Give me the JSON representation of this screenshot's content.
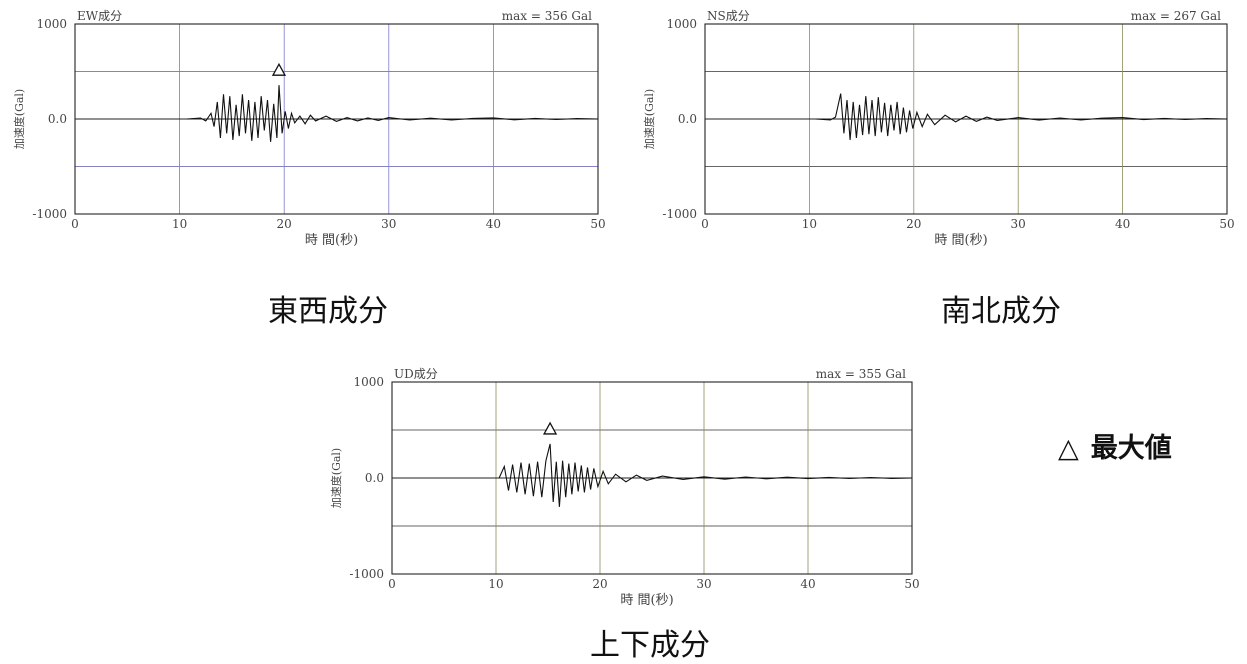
{
  "chart_data": [
    {
      "type": "line",
      "id": "ew",
      "component_label": "EW成分",
      "max_label": "max = 356 Gal",
      "ylabel": "加速度(Gal)",
      "xlabel": "時 間(秒)",
      "ylim": [
        -1000,
        1000
      ],
      "y_ticks": [
        "1000",
        "0.0",
        "-1000"
      ],
      "xlim": [
        0,
        50
      ],
      "x_ticks": [
        "0",
        "10",
        "20",
        "30",
        "40",
        "50"
      ],
      "grid_y": [
        500,
        -500
      ],
      "grid_x": [
        10,
        20,
        30,
        40
      ],
      "peak": {
        "x": 19.5,
        "y": 356
      },
      "series": [
        {
          "x": [
            10.7,
            12.0,
            12.5,
            13.0,
            13.3,
            13.6,
            13.9,
            14.2,
            14.5,
            14.8,
            15.1,
            15.4,
            15.7,
            16.0,
            16.3,
            16.6,
            16.9,
            17.2,
            17.5,
            17.8,
            18.1,
            18.4,
            18.7,
            19.0,
            19.3,
            19.5,
            19.8,
            20.1,
            20.4,
            20.7,
            21.0,
            21.5,
            22.0,
            22.5,
            23.0,
            24.0,
            25.0,
            26.0,
            27.0,
            28.0,
            29.0,
            30.0,
            32.0,
            34.0,
            36.0,
            38.0,
            40.0,
            42.0,
            44.0,
            46.0,
            48.0,
            50.0
          ],
          "y": [
            0,
            10,
            -20,
            60,
            -80,
            180,
            -200,
            260,
            -150,
            240,
            -220,
            150,
            -180,
            260,
            -150,
            200,
            -230,
            180,
            -200,
            240,
            -120,
            200,
            -240,
            160,
            -200,
            356,
            -150,
            80,
            -100,
            60,
            -40,
            30,
            -50,
            40,
            -20,
            30,
            -25,
            15,
            -20,
            10,
            -15,
            15,
            -10,
            8,
            -10,
            6,
            12,
            -8,
            6,
            -5,
            4,
            0
          ]
        }
      ],
      "caption": "東西成分"
    },
    {
      "type": "line",
      "id": "ns",
      "component_label": "NS成分",
      "max_label": "max = 267 Gal",
      "ylabel": "加速度(Gal)",
      "xlabel": "時 間(秒)",
      "ylim": [
        -1000,
        1000
      ],
      "y_ticks": [
        "1000",
        "0.0",
        "-1000"
      ],
      "xlim": [
        0,
        50
      ],
      "x_ticks": [
        "0",
        "10",
        "20",
        "30",
        "40",
        "50"
      ],
      "grid_y": [
        500,
        -500
      ],
      "grid_x": [
        10,
        20,
        30,
        40
      ],
      "series": [
        {
          "x": [
            10.6,
            12.0,
            12.5,
            13.0,
            13.3,
            13.6,
            13.9,
            14.2,
            14.5,
            14.8,
            15.1,
            15.4,
            15.7,
            16.0,
            16.3,
            16.6,
            16.9,
            17.2,
            17.5,
            17.8,
            18.1,
            18.4,
            18.7,
            19.0,
            19.3,
            19.6,
            19.9,
            20.3,
            20.8,
            21.3,
            22.0,
            23.0,
            24.0,
            25.0,
            26.0,
            27.0,
            28.0,
            30.0,
            32.0,
            34.0,
            36.0,
            38.0,
            40.0,
            42.0,
            44.0,
            46.0,
            48.0,
            50.0
          ],
          "y": [
            0,
            -10,
            20,
            267,
            -150,
            200,
            -220,
            180,
            -200,
            150,
            -170,
            240,
            -160,
            200,
            -180,
            230,
            -140,
            170,
            -180,
            150,
            -120,
            180,
            -160,
            120,
            -140,
            90,
            -100,
            70,
            -80,
            50,
            -60,
            40,
            -30,
            30,
            -25,
            20,
            -15,
            15,
            -12,
            10,
            -10,
            8,
            15,
            -6,
            6,
            -5,
            4,
            0
          ]
        }
      ],
      "caption": "南北成分"
    },
    {
      "type": "line",
      "id": "ud",
      "component_label": "UD成分",
      "max_label": "max = 355 Gal",
      "ylabel": "加速度(Gal)",
      "xlabel": "時 間(秒)",
      "ylim": [
        -1000,
        1000
      ],
      "y_ticks": [
        "1000",
        "0.0",
        "-1000"
      ],
      "xlim": [
        0,
        50
      ],
      "x_ticks": [
        "0",
        "10",
        "20",
        "30",
        "40",
        "50"
      ],
      "grid_y": [
        500,
        -500
      ],
      "grid_x": [
        10,
        20,
        30,
        40
      ],
      "peak": {
        "x": 15.2,
        "y": 355
      },
      "series": [
        {
          "x": [
            10.3,
            10.8,
            11.2,
            11.6,
            12.0,
            12.4,
            12.8,
            13.2,
            13.6,
            14.0,
            14.4,
            14.8,
            15.2,
            15.5,
            15.8,
            16.1,
            16.4,
            16.7,
            17.0,
            17.3,
            17.6,
            17.9,
            18.2,
            18.5,
            18.8,
            19.1,
            19.4,
            19.8,
            20.3,
            20.8,
            21.5,
            22.5,
            23.5,
            24.5,
            26.0,
            28.0,
            30.0,
            32.0,
            34.0,
            36.0,
            38.0,
            40.0,
            42.0,
            44.0,
            46.0,
            48.0,
            50.0
          ],
          "y": [
            0,
            120,
            -130,
            140,
            -150,
            160,
            -170,
            150,
            -190,
            170,
            -200,
            180,
            355,
            -250,
            170,
            -300,
            180,
            -200,
            150,
            -170,
            160,
            -140,
            130,
            -150,
            110,
            -120,
            100,
            -90,
            70,
            -60,
            40,
            -40,
            30,
            -25,
            20,
            -15,
            12,
            -12,
            10,
            -8,
            8,
            -6,
            6,
            -5,
            5,
            -4,
            0
          ]
        }
      ],
      "caption": "上下成分"
    }
  ],
  "legend": {
    "symbol": "△",
    "label": "最大値"
  }
}
